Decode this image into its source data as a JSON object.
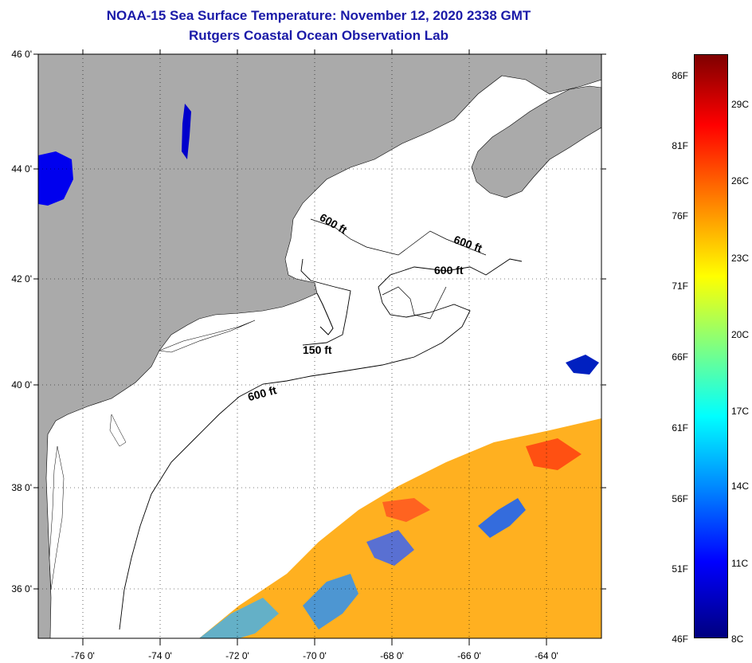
{
  "title": {
    "line1": "NOAA-15 Sea Surface Temperature:  November 12, 2020 2338 GMT",
    "line2": "Rutgers Coastal Ocean Observation Lab"
  },
  "axes": {
    "latitude_labels": [
      "46 0'",
      "44 0'",
      "42 0'",
      "40 0'",
      "38 0'",
      "36 0'"
    ],
    "longitude_labels": [
      "-76 0'",
      "-74 0'",
      "-72 0'",
      "-70 0'",
      "-68 0'",
      "-66 0'",
      "-64 0'"
    ]
  },
  "contours": {
    "labels": [
      "600 ft",
      "600 ft",
      "600 ft",
      "150 ft",
      "600 ft"
    ]
  },
  "colorbar": {
    "fahrenheit_labels": [
      "86F",
      "81F",
      "76F",
      "71F",
      "66F",
      "61F",
      "56F",
      "51F",
      "46F"
    ],
    "celsius_labels": [
      "29C",
      "26C",
      "23C",
      "20C",
      "17C",
      "14C",
      "11C",
      "8C"
    ]
  },
  "colors": {
    "land": "#aaaaaa",
    "title": "#1a1aa8"
  }
}
